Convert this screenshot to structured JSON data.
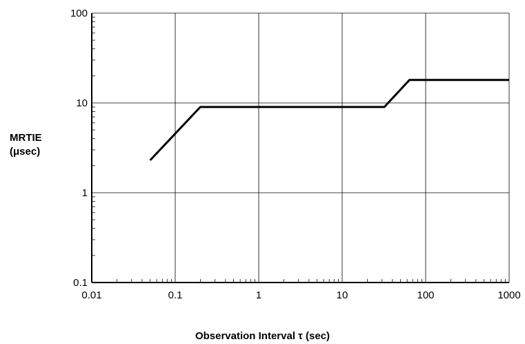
{
  "chart_data": {
    "type": "line",
    "title": "",
    "ylabel_lines": [
      "MRTIE",
      "(μsec)"
    ],
    "xlabel": "Observation Interval τ (sec)",
    "x_scale": "log",
    "y_scale": "log",
    "xlim": [
      0.01,
      1000
    ],
    "ylim": [
      0.1,
      100
    ],
    "x_ticks": [
      {
        "value": 0.01,
        "label": "0.01"
      },
      {
        "value": 0.1,
        "label": "0.1"
      },
      {
        "value": 1,
        "label": "1"
      },
      {
        "value": 10,
        "label": "10"
      },
      {
        "value": 100,
        "label": "100"
      },
      {
        "value": 1000,
        "label": "1000"
      }
    ],
    "y_ticks": [
      {
        "value": 0.1,
        "label": "0.1"
      },
      {
        "value": 1,
        "label": "1"
      },
      {
        "value": 10,
        "label": "10"
      },
      {
        "value": 100,
        "label": "100"
      }
    ],
    "grid": true,
    "series": [
      {
        "x": [
          0.05,
          0.2,
          32,
          64,
          1000
        ],
        "y": [
          2.3,
          9,
          9,
          18,
          18
        ]
      }
    ]
  }
}
